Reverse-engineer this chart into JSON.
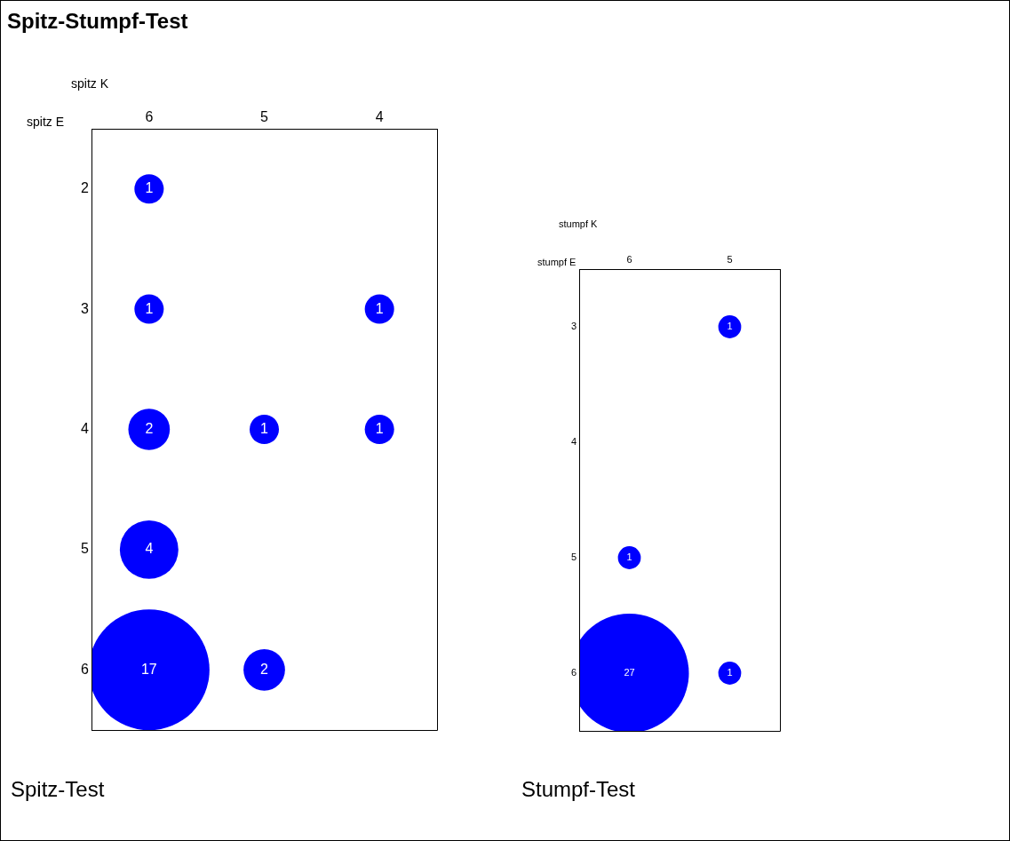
{
  "chart_data": [
    {
      "type": "bubble",
      "title": "Spitz-Stumpf-Test",
      "subtitle": "Spitz-Test",
      "xlabel": "spitz K",
      "ylabel": "spitz E",
      "xlim": [
        6.5,
        3.5
      ],
      "xticks": [
        6,
        5,
        4
      ],
      "ylim": [
        6.5,
        1.5
      ],
      "yticks": [
        2,
        3,
        4,
        5,
        6
      ],
      "grid": false,
      "legend": false,
      "series": [
        {
          "color": "#0000ff",
          "x": [
            6,
            6,
            4,
            6,
            5,
            4,
            6,
            6,
            5
          ],
          "values": [
            2,
            3,
            3,
            4,
            4,
            4,
            5,
            6,
            6
          ],
          "sizes": [
            0.059,
            0.059,
            0.059,
            0.118,
            0.059,
            0.059,
            0.235,
            1,
            0.118
          ]
        }
      ],
      "annotations": [
        {
          "text": "1",
          "x": 6,
          "y": 2
        },
        {
          "text": "1",
          "x": 6,
          "y": 3
        },
        {
          "text": "1",
          "x": 4,
          "y": 3
        },
        {
          "text": "2",
          "x": 6,
          "y": 4
        },
        {
          "text": "1",
          "x": 5,
          "y": 4
        },
        {
          "text": "1",
          "x": 4,
          "y": 4
        },
        {
          "text": "4",
          "x": 6,
          "y": 5
        },
        {
          "text": "17",
          "x": 6,
          "y": 6
        },
        {
          "text": "2",
          "x": 5,
          "y": 6
        }
      ]
    },
    {
      "type": "bubble",
      "subtitle": "Stumpf-Test",
      "xlabel": "stumpf K",
      "ylabel": "stumpf E",
      "xlim": [
        6.5,
        4.5
      ],
      "xticks": [
        6,
        5
      ],
      "ylim": [
        6.5,
        2.5
      ],
      "yticks": [
        3,
        4,
        5,
        6
      ],
      "grid": false,
      "legend": false,
      "series": [
        {
          "color": "#0000ff",
          "x": [
            5,
            6,
            6,
            5
          ],
          "values": [
            3,
            5,
            6,
            6
          ],
          "sizes": [
            0.037,
            0.037,
            1,
            0.037
          ]
        }
      ],
      "annotations": [
        {
          "text": "1",
          "x": 5,
          "y": 3
        },
        {
          "text": "1",
          "x": 6,
          "y": 5
        },
        {
          "text": "27",
          "x": 6,
          "y": 6
        },
        {
          "text": "1",
          "x": 5,
          "y": 6
        }
      ]
    }
  ]
}
